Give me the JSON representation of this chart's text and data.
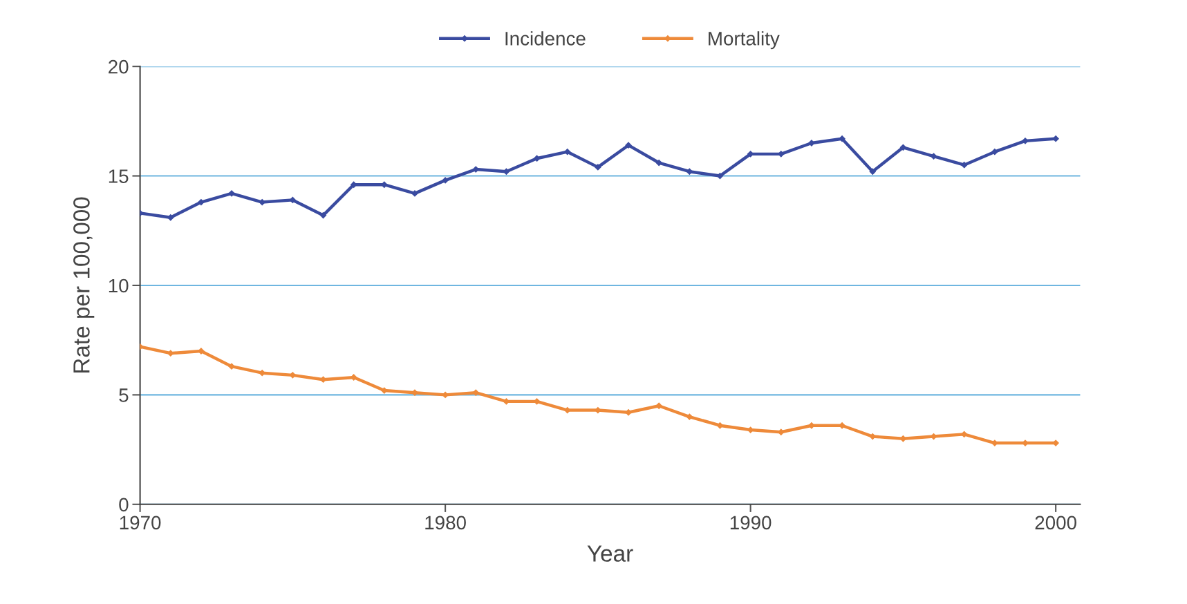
{
  "chart_data": {
    "type": "line",
    "xlabel": "Year",
    "ylabel": "Rate per 100,000",
    "x": [
      1970,
      1971,
      1972,
      1973,
      1974,
      1975,
      1976,
      1977,
      1978,
      1979,
      1980,
      1981,
      1982,
      1983,
      1984,
      1985,
      1986,
      1987,
      1988,
      1989,
      1990,
      1991,
      1992,
      1993,
      1994,
      1995,
      1996,
      1997,
      1998,
      1999,
      2000
    ],
    "series": [
      {
        "name": "Incidence",
        "color": "#3a4ba0",
        "values": [
          13.3,
          13.1,
          13.8,
          14.2,
          13.8,
          13.9,
          13.2,
          14.6,
          14.6,
          14.2,
          14.8,
          15.3,
          15.2,
          15.8,
          16.1,
          15.4,
          16.4,
          15.6,
          15.2,
          15.0,
          16.0,
          16.0,
          16.5,
          16.7,
          15.2,
          16.3,
          15.9,
          15.5,
          16.1,
          16.6,
          16.7
        ]
      },
      {
        "name": "Mortality",
        "color": "#ee8a3a",
        "values": [
          7.2,
          6.9,
          7.0,
          6.3,
          6.0,
          5.9,
          5.7,
          5.8,
          5.2,
          5.1,
          5.0,
          5.1,
          4.7,
          4.7,
          4.3,
          4.3,
          4.2,
          4.5,
          4.0,
          3.6,
          3.4,
          3.3,
          3.6,
          3.6,
          3.1,
          3.0,
          3.1,
          3.2,
          2.8,
          2.8,
          2.8
        ]
      }
    ],
    "xlim": [
      1970,
      2000.8
    ],
    "xticks": [
      1970,
      1980,
      1990,
      2000
    ],
    "ylim": [
      0,
      20
    ],
    "yticks": [
      0,
      5,
      10,
      15,
      20
    ],
    "grid": "y",
    "legend": "top",
    "marker": "diamond",
    "line_style": "solid"
  }
}
